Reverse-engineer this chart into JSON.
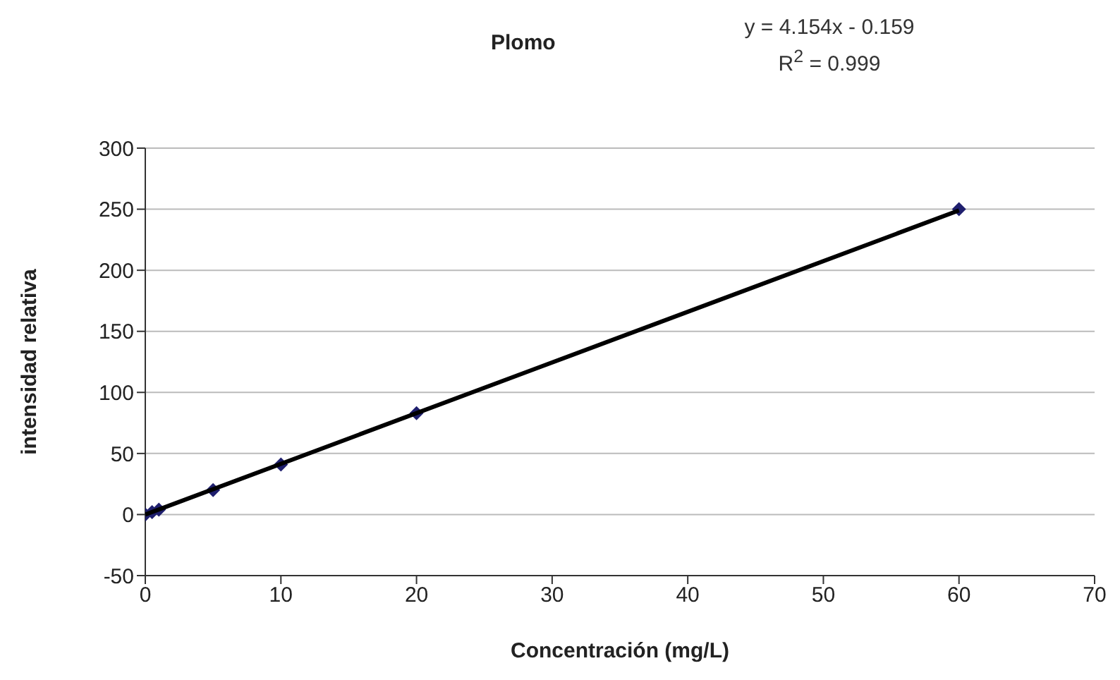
{
  "chart_data": {
    "type": "scatter",
    "title": "Plomo",
    "annotations": [
      "y = 4.154x - 0.159",
      "R$^{2}$ = 0.999"
    ],
    "xlabel": "Concentración (mg/L)",
    "ylabel": "intensidad relativa",
    "series": [
      {
        "color": "#1f1f6e",
        "marker": "diamond",
        "x": [
          0,
          0.5,
          1,
          5,
          10,
          20,
          60
        ],
        "values": [
          0,
          2,
          4,
          20,
          41,
          83,
          250
        ]
      },
      {
        "type": "line",
        "color": "#000000",
        "marker": "none",
        "x": [
          0,
          60
        ],
        "values": [
          0,
          249
        ]
      }
    ],
    "xlim": [
      0,
      70
    ],
    "xticks": [
      0,
      10,
      20,
      30,
      40,
      50,
      60,
      70
    ],
    "ylim": [
      -50,
      300
    ],
    "yticks": [
      -50,
      0,
      50,
      100,
      150,
      200,
      250,
      300
    ],
    "grid": "y",
    "legend": false
  }
}
